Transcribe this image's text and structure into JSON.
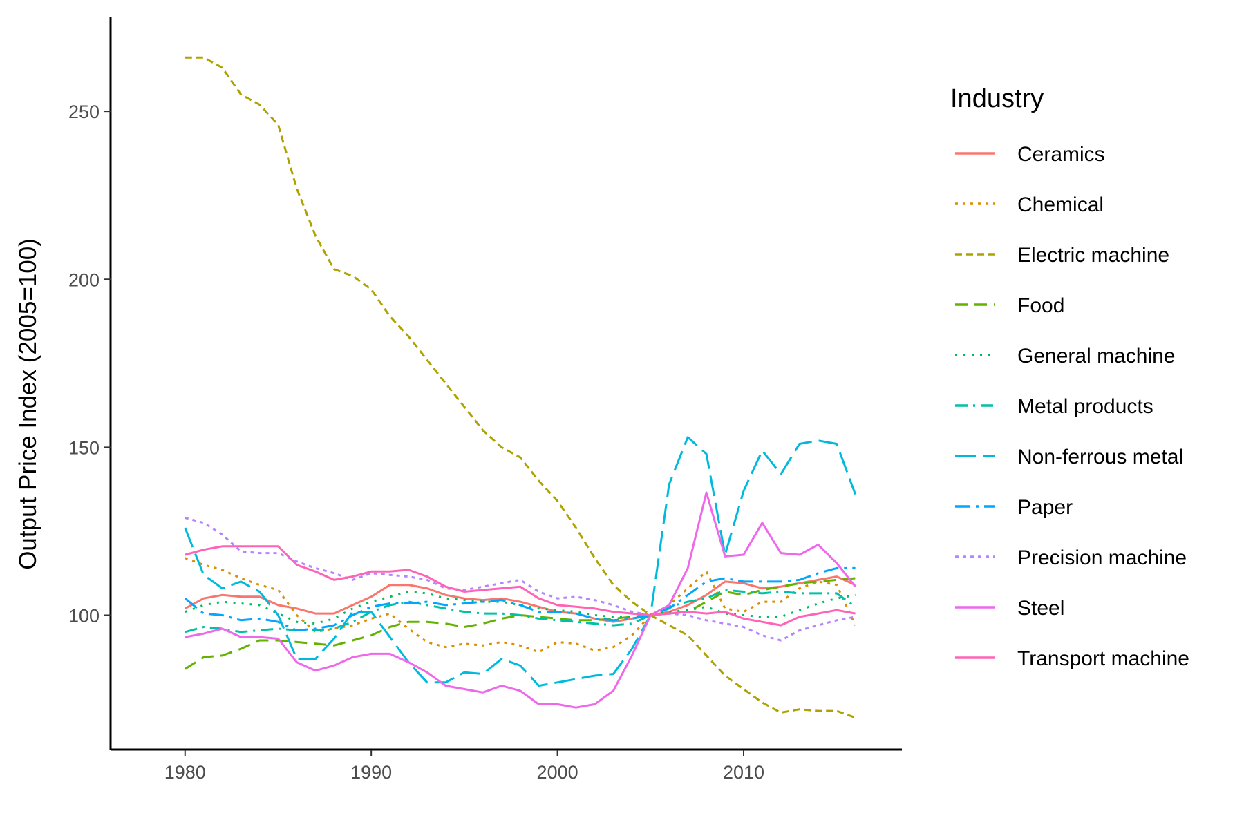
{
  "chart_data": {
    "type": "line",
    "title": "",
    "xlabel": "",
    "ylabel": "Output Price Index (2005=100)",
    "xlim": [
      1976,
      2018.5
    ],
    "ylim": [
      60,
      278
    ],
    "x_ticks": [
      1980,
      1990,
      2000,
      2010
    ],
    "y_ticks": [
      100,
      150,
      200,
      250
    ],
    "grid": false,
    "legend": {
      "title": "Industry",
      "position": "right"
    },
    "x": [
      1980,
      1981,
      1982,
      1983,
      1984,
      1985,
      1986,
      1987,
      1988,
      1989,
      1990,
      1991,
      1992,
      1993,
      1994,
      1995,
      1996,
      1997,
      1998,
      1999,
      2000,
      2001,
      2002,
      2003,
      2004,
      2005,
      2006,
      2007,
      2008,
      2009,
      2010,
      2011,
      2012,
      2013,
      2014,
      2015,
      2016
    ],
    "series": [
      {
        "name": "Ceramics",
        "color": "#F8766D",
        "dash": "",
        "values": [
          102,
          105,
          106,
          105.5,
          105.5,
          103,
          102,
          100.5,
          100.5,
          103,
          105.5,
          109,
          109,
          108,
          106,
          105,
          104.5,
          105,
          104,
          102.5,
          101,
          100.5,
          99,
          98,
          99,
          100,
          101,
          103,
          106,
          110,
          109.5,
          108,
          108.5,
          109.5,
          110.5,
          111.5,
          109
        ]
      },
      {
        "name": "Chemical",
        "color": "#DB8E00",
        "dash": "4,7",
        "values": [
          117,
          115,
          113.5,
          111,
          109,
          107.5,
          100,
          95,
          96,
          97,
          99,
          100.5,
          96,
          92,
          90.5,
          91.5,
          91,
          92,
          91,
          89,
          92,
          91.5,
          89.5,
          90.5,
          94,
          100,
          103,
          108,
          113,
          102,
          101,
          104,
          104,
          108,
          110,
          109,
          97
        ]
      },
      {
        "name": "Electric machine",
        "color": "#AEA200",
        "dash": "10,6",
        "values": [
          266,
          266,
          263,
          255,
          252,
          246,
          227,
          213,
          203,
          201,
          197,
          189,
          183,
          176,
          169,
          162,
          155,
          150,
          147,
          140,
          134,
          126,
          117,
          109,
          104,
          100,
          97,
          94,
          88,
          82,
          78,
          74,
          71,
          72,
          71.5,
          71.5,
          69.5
        ]
      },
      {
        "name": "Food",
        "color": "#64B200",
        "dash": "18,10",
        "values": [
          84,
          87.5,
          88,
          90,
          92.5,
          92.5,
          92,
          91.5,
          91,
          92.5,
          94,
          96.5,
          98,
          98,
          97.5,
          96.5,
          97.5,
          99,
          100,
          99.5,
          99,
          98.5,
          98.5,
          99,
          99.5,
          100,
          100.5,
          101,
          104,
          107,
          106,
          107.5,
          108.5,
          109.5,
          110,
          110.5,
          111
        ]
      },
      {
        "name": "General machine",
        "color": "#00BD5C",
        "dash": "3,9",
        "values": [
          101,
          103,
          104,
          103.5,
          103,
          100.5,
          98,
          97.5,
          99,
          102,
          104,
          105.5,
          107,
          106.5,
          105,
          104.5,
          104,
          104,
          103,
          102,
          101.5,
          101,
          100,
          99.5,
          99.5,
          100,
          101,
          101.5,
          102.5,
          100.5,
          100,
          99.5,
          99.5,
          101.5,
          103.5,
          105,
          106
        ]
      },
      {
        "name": "Metal products",
        "color": "#00C1A7",
        "dash": "18,8,3,8",
        "values": [
          95,
          96.5,
          96,
          95,
          95.5,
          96,
          95.5,
          95.5,
          96,
          98,
          101,
          103,
          104,
          103,
          102,
          101,
          100.5,
          100.5,
          100,
          99,
          98.5,
          98,
          97.5,
          97,
          97.5,
          100,
          102.5,
          104,
          105,
          107.5,
          107,
          106.5,
          107,
          106.5,
          106.5,
          106.5,
          102.5
        ]
      },
      {
        "name": "Non-ferrous metal",
        "color": "#00BADE",
        "dash": "30,10",
        "values": [
          126,
          112,
          108,
          110,
          107,
          100,
          87,
          87,
          93,
          101,
          101,
          93.5,
          86,
          80,
          80,
          83,
          82.5,
          87,
          85,
          79,
          80,
          81,
          82,
          82.5,
          90,
          100,
          139,
          153,
          148,
          118,
          137,
          149,
          142,
          151,
          152,
          151,
          136
        ]
      },
      {
        "name": "Paper",
        "color": "#00A6FF",
        "dash": "22,8,4,8",
        "values": [
          105,
          100.5,
          100,
          98.5,
          99,
          98,
          95.5,
          96,
          97,
          100,
          102.5,
          103.5,
          103.5,
          104,
          103,
          103.5,
          104,
          104.5,
          103,
          101,
          101,
          100.5,
          99,
          98.5,
          99,
          100,
          102,
          106,
          110,
          111,
          110,
          110,
          110,
          110.5,
          112.5,
          114,
          114
        ]
      },
      {
        "name": "Precision machine",
        "color": "#B385FF",
        "dash": "5,6",
        "values": [
          129,
          127.5,
          124,
          119,
          118.5,
          118.5,
          116,
          114,
          112.5,
          110.5,
          112.5,
          112,
          111.5,
          110.5,
          108,
          107.5,
          108.5,
          109.5,
          110.5,
          107,
          105,
          105.5,
          104.5,
          103,
          101,
          100,
          100.5,
          100,
          98.5,
          97.5,
          96.5,
          94,
          92.5,
          95.5,
          97,
          98.5,
          99.5
        ]
      },
      {
        "name": "Steel",
        "color": "#EF67EB",
        "dash": "",
        "values": [
          93.5,
          94.5,
          96,
          93.5,
          93.5,
          93,
          86,
          83.5,
          85,
          87.5,
          88.5,
          88.5,
          86,
          83,
          79,
          78,
          77,
          79,
          77.5,
          73.5,
          73.5,
          72.5,
          73.5,
          77.5,
          88,
          100,
          103,
          114,
          136.5,
          117.5,
          118,
          127.5,
          118.5,
          118,
          121,
          115.5,
          108.5
        ]
      },
      {
        "name": "Transport machine",
        "color": "#FF63B6",
        "dash": "",
        "values": [
          118,
          119.5,
          120.5,
          120.5,
          120.5,
          120.5,
          115,
          113,
          110.5,
          111.5,
          113,
          113,
          113.5,
          111.5,
          108.5,
          107,
          107.5,
          108,
          108.5,
          105,
          103,
          102.5,
          102,
          101,
          100.5,
          100,
          100.5,
          101,
          100.5,
          101,
          99,
          98,
          97,
          99.5,
          100.5,
          101.5,
          100.5
        ]
      }
    ]
  }
}
